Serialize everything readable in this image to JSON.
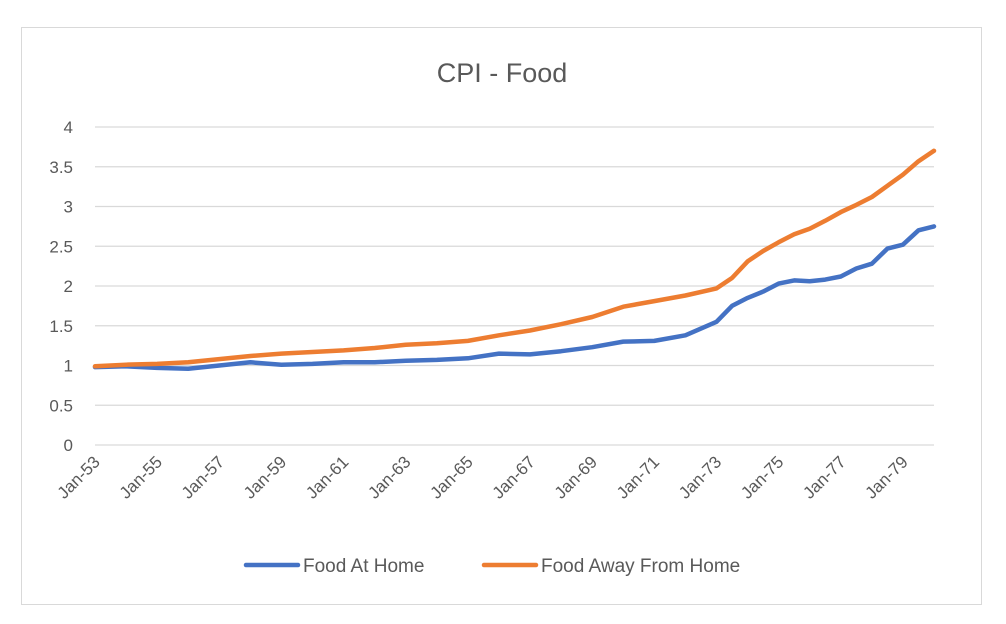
{
  "colors": {
    "food_at_home": "#4472C4",
    "food_away_from_home": "#ED7D31",
    "grid": "#d9d9d9",
    "text": "#595959"
  },
  "chart_data": {
    "type": "line",
    "title": "CPI - Food",
    "xlabel": "",
    "ylabel": "",
    "ylim": [
      0,
      4
    ],
    "yticks": [
      "0",
      "0.5",
      "1",
      "1.5",
      "2",
      "2.5",
      "3",
      "3.5",
      "4"
    ],
    "x_tick_labels": [
      "Jan-53",
      "Jan-55",
      "Jan-57",
      "Jan-59",
      "Jan-61",
      "Jan-63",
      "Jan-65",
      "Jan-67",
      "Jan-69",
      "Jan-71",
      "Jan-73",
      "Jan-75",
      "Jan-77",
      "Jan-79"
    ],
    "x": [
      1953.0,
      1954.0,
      1955.0,
      1956.0,
      1957.0,
      1958.0,
      1959.0,
      1960.0,
      1961.0,
      1962.0,
      1963.0,
      1964.0,
      1965.0,
      1966.0,
      1967.0,
      1968.0,
      1969.0,
      1970.0,
      1971.0,
      1972.0,
      1973.0,
      1973.5,
      1974.0,
      1974.5,
      1975.0,
      1975.5,
      1976.0,
      1976.5,
      1977.0,
      1977.5,
      1978.0,
      1978.5,
      1979.0,
      1979.5,
      1980.0
    ],
    "grid": true,
    "legend_position": "bottom",
    "series": [
      {
        "name": "Food At Home",
        "values": [
          0.98,
          0.99,
          0.97,
          0.96,
          1.0,
          1.04,
          1.01,
          1.02,
          1.04,
          1.04,
          1.06,
          1.07,
          1.09,
          1.15,
          1.14,
          1.18,
          1.23,
          1.3,
          1.31,
          1.38,
          1.55,
          1.75,
          1.85,
          1.93,
          2.03,
          2.07,
          2.06,
          2.08,
          2.12,
          2.22,
          2.28,
          2.47,
          2.52,
          2.7,
          2.75
        ]
      },
      {
        "name": "Food Away From Home",
        "values": [
          0.99,
          1.01,
          1.02,
          1.04,
          1.08,
          1.12,
          1.15,
          1.17,
          1.19,
          1.22,
          1.26,
          1.28,
          1.31,
          1.38,
          1.44,
          1.52,
          1.61,
          1.74,
          1.81,
          1.88,
          1.97,
          2.1,
          2.31,
          2.44,
          2.55,
          2.65,
          2.72,
          2.82,
          2.93,
          3.02,
          3.12,
          3.26,
          3.4,
          3.57,
          3.7
        ]
      }
    ]
  }
}
